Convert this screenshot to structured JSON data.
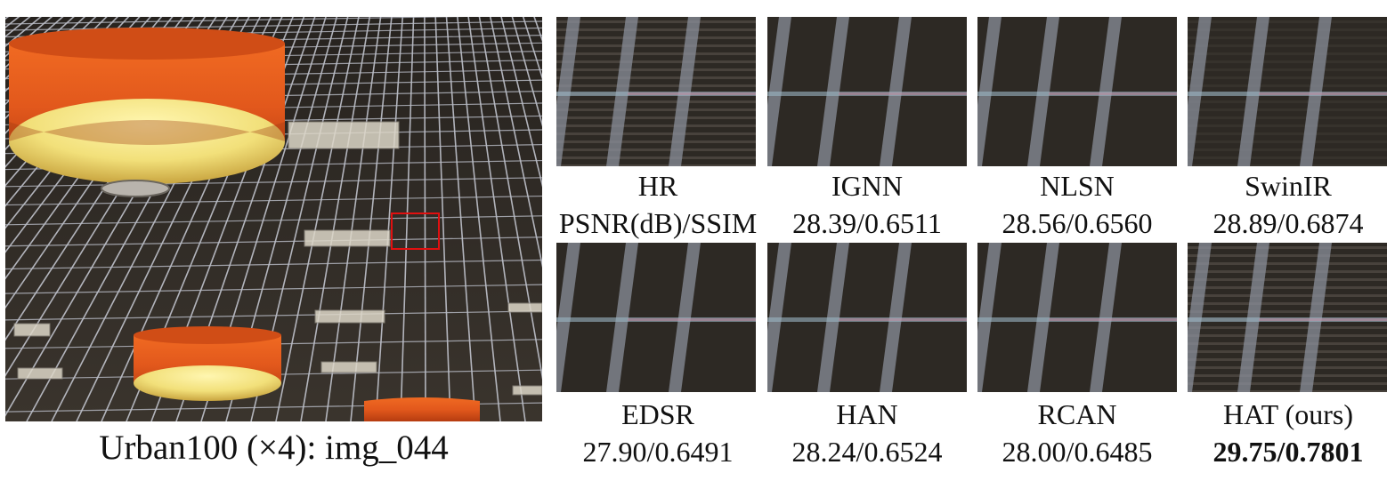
{
  "image_label": "Urban100 (×4): img_044",
  "methods": [
    {
      "name": "HR",
      "score": "PSNR(dB)/SSIM",
      "bold": false,
      "texture": "striped"
    },
    {
      "name": "IGNN",
      "score": "28.39/0.6511",
      "bold": false,
      "texture": "blurred"
    },
    {
      "name": "NLSN",
      "score": "28.56/0.6560",
      "bold": false,
      "texture": "blurred"
    },
    {
      "name": "SwinIR",
      "score": "28.89/0.6874",
      "bold": false,
      "texture": "faint"
    },
    {
      "name": "EDSR",
      "score": "27.90/0.6491",
      "bold": false,
      "texture": "blurred"
    },
    {
      "name": "HAN",
      "score": "28.24/0.6524",
      "bold": false,
      "texture": "blurred"
    },
    {
      "name": "RCAN",
      "score": "28.00/0.6485",
      "bold": false,
      "texture": "blurred"
    },
    {
      "name": "HAT (ours)",
      "score": "29.75/0.7801",
      "bold": true,
      "texture": "striped"
    }
  ],
  "colors": {
    "lamp_shade": "#e2581c",
    "lamp_inner": "#f2e07a",
    "grid_line": "#c9ccd6",
    "ceiling": "#2c2824",
    "crop_box": "#e01010"
  }
}
